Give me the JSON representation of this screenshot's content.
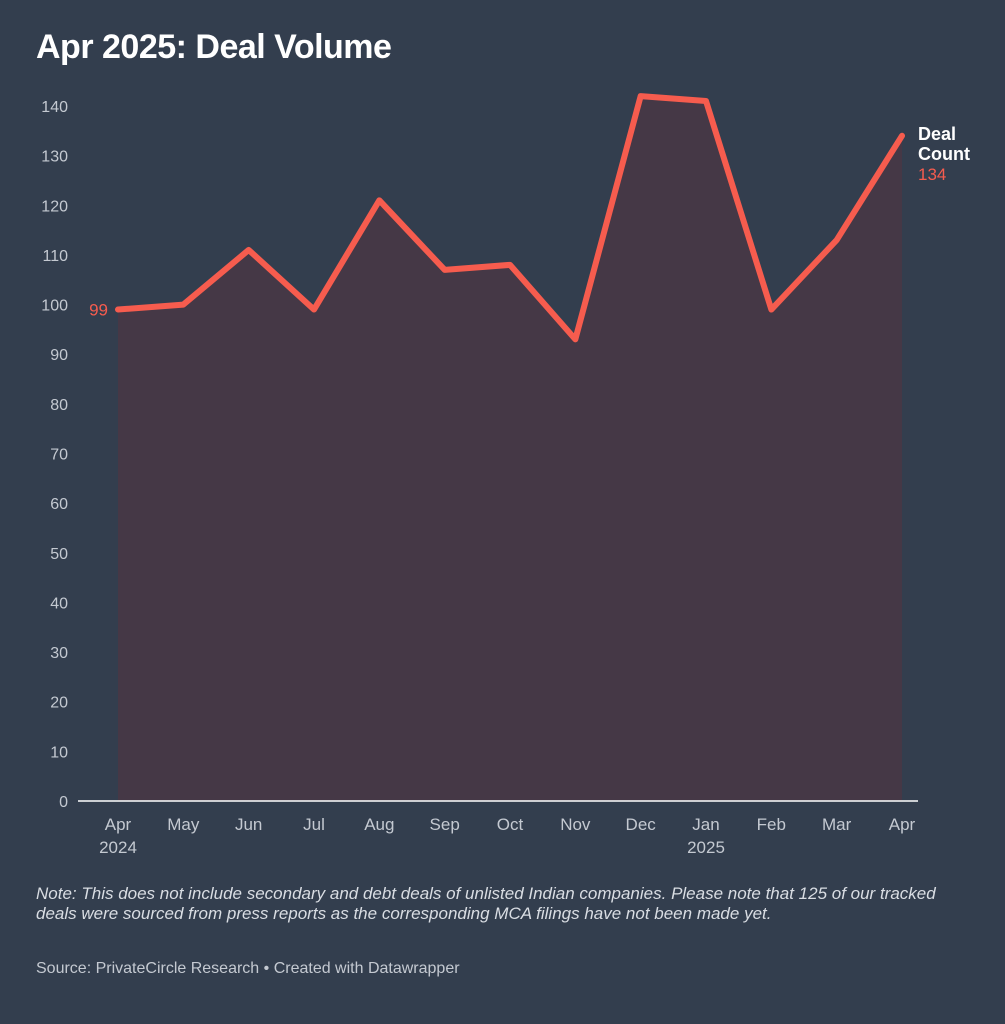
{
  "chart_data": {
    "type": "area",
    "title": "Apr 2025: Deal Volume",
    "categories": [
      "Apr",
      "May",
      "Jun",
      "Jul",
      "Aug",
      "Sep",
      "Oct",
      "Nov",
      "Dec",
      "Jan",
      "Feb",
      "Mar",
      "Apr"
    ],
    "year_labels": [
      "2024",
      "",
      "",
      "",
      "",
      "",
      "",
      "",
      "",
      "2025",
      "",
      "",
      ""
    ],
    "series": [
      {
        "name": "Deal Count",
        "name_lines": [
          "Deal",
          "Count"
        ],
        "values": [
          99,
          100,
          111,
          99,
          121,
          107,
          108,
          93,
          142,
          141,
          99,
          113,
          134
        ]
      }
    ],
    "start_label": "99",
    "end_label": "134",
    "yticks": [
      "0",
      "10",
      "20",
      "30",
      "40",
      "50",
      "60",
      "70",
      "80",
      "90",
      "100",
      "110",
      "120",
      "130",
      "140"
    ],
    "ylim": [
      0,
      140
    ],
    "xlabel": "",
    "ylabel": "",
    "grid": false
  },
  "footer": {
    "note": "Note: This does not include secondary and debt deals of unlisted Indian companies. Please note that 125 of our tracked deals were sourced from press reports as the corresponding MCA filings have not been made yet.",
    "source": "Source: PrivateCircle Research • Created with Datawrapper"
  },
  "colors": {
    "background": "#333e4e",
    "line": "#f65c4e",
    "area": "#453846",
    "axis_text": "#c4c9d1",
    "axis_line": "#ffffff",
    "title": "#ffffff"
  }
}
